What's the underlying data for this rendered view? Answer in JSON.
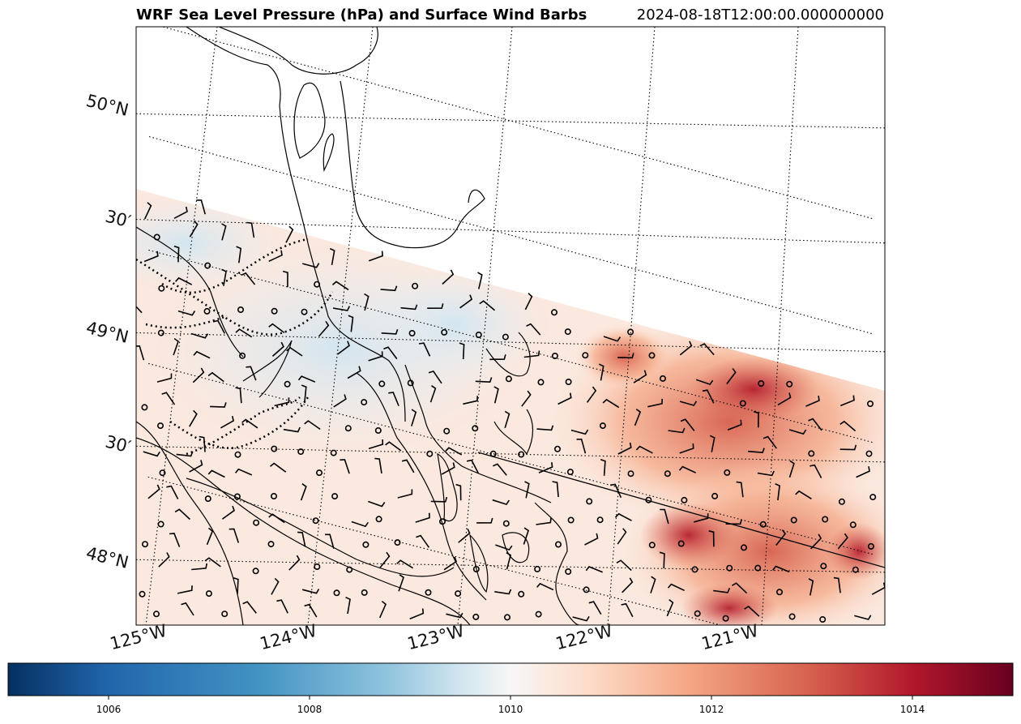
{
  "title": "WRF Sea Level Pressure (hPa) and Surface Wind Barbs",
  "timestamp": "2024-08-18T12:00:00.000000000",
  "latitude_labels": [
    "50°N",
    "30′",
    "49°N",
    "30′",
    "48°N"
  ],
  "longitude_labels": [
    "125°W",
    "124°W",
    "123°W",
    "122°W",
    "121°W"
  ],
  "colorbar": {
    "colormap": "RdBu_r",
    "range": [
      1005,
      1015
    ],
    "tick_labels": [
      "1006",
      "1008",
      "1010",
      "1012",
      "1014"
    ],
    "tick_values": [
      1006,
      1008,
      1010,
      1012,
      1014
    ]
  },
  "colors": {
    "low_pressure": "#053061",
    "mid_pressure": "#f7f7f7",
    "high_pressure": "#67001f",
    "coastline": "#000000",
    "gridline": "#000000"
  }
}
